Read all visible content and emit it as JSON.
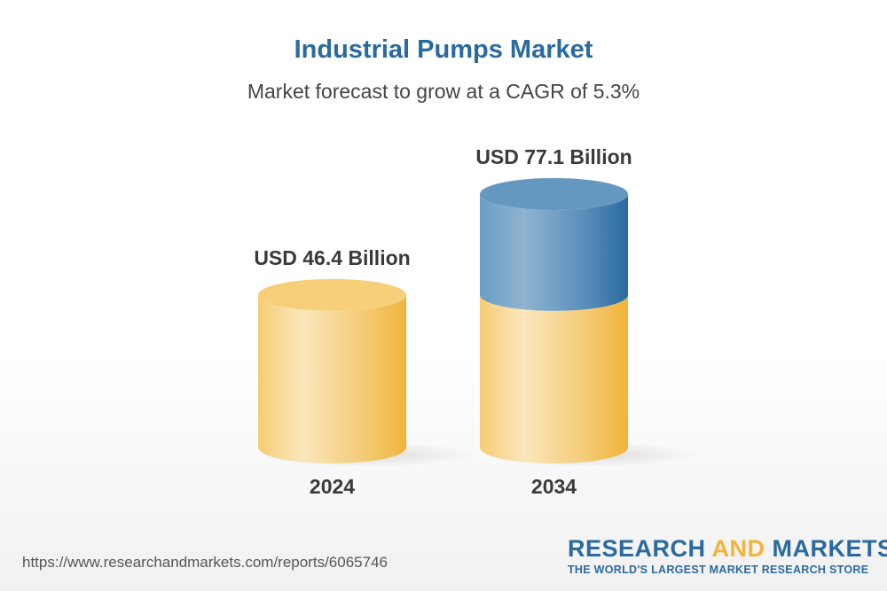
{
  "chart_data": {
    "type": "bar",
    "title": "Industrial Pumps Market",
    "subtitle": "Market forecast to grow at a CAGR of 5.3%",
    "categories": [
      "2024",
      "2034"
    ],
    "values": [
      46.4,
      77.1
    ],
    "data_labels": [
      "USD 46.4 Billion",
      "USD 77.1 Billion"
    ],
    "unit": "USD Billion",
    "style": "3d-cylinder",
    "colors": {
      "base": "#f2b53c",
      "growth": "#2a6aa0"
    }
  },
  "footer": {
    "url": "https://www.researchandmarkets.com/reports/6065746",
    "logo_part1": "RESEARCH ",
    "logo_part2": "AND",
    "logo_part3": " MARKETS",
    "logo_tagline": "THE WORLD'S LARGEST MARKET RESEARCH STORE"
  }
}
